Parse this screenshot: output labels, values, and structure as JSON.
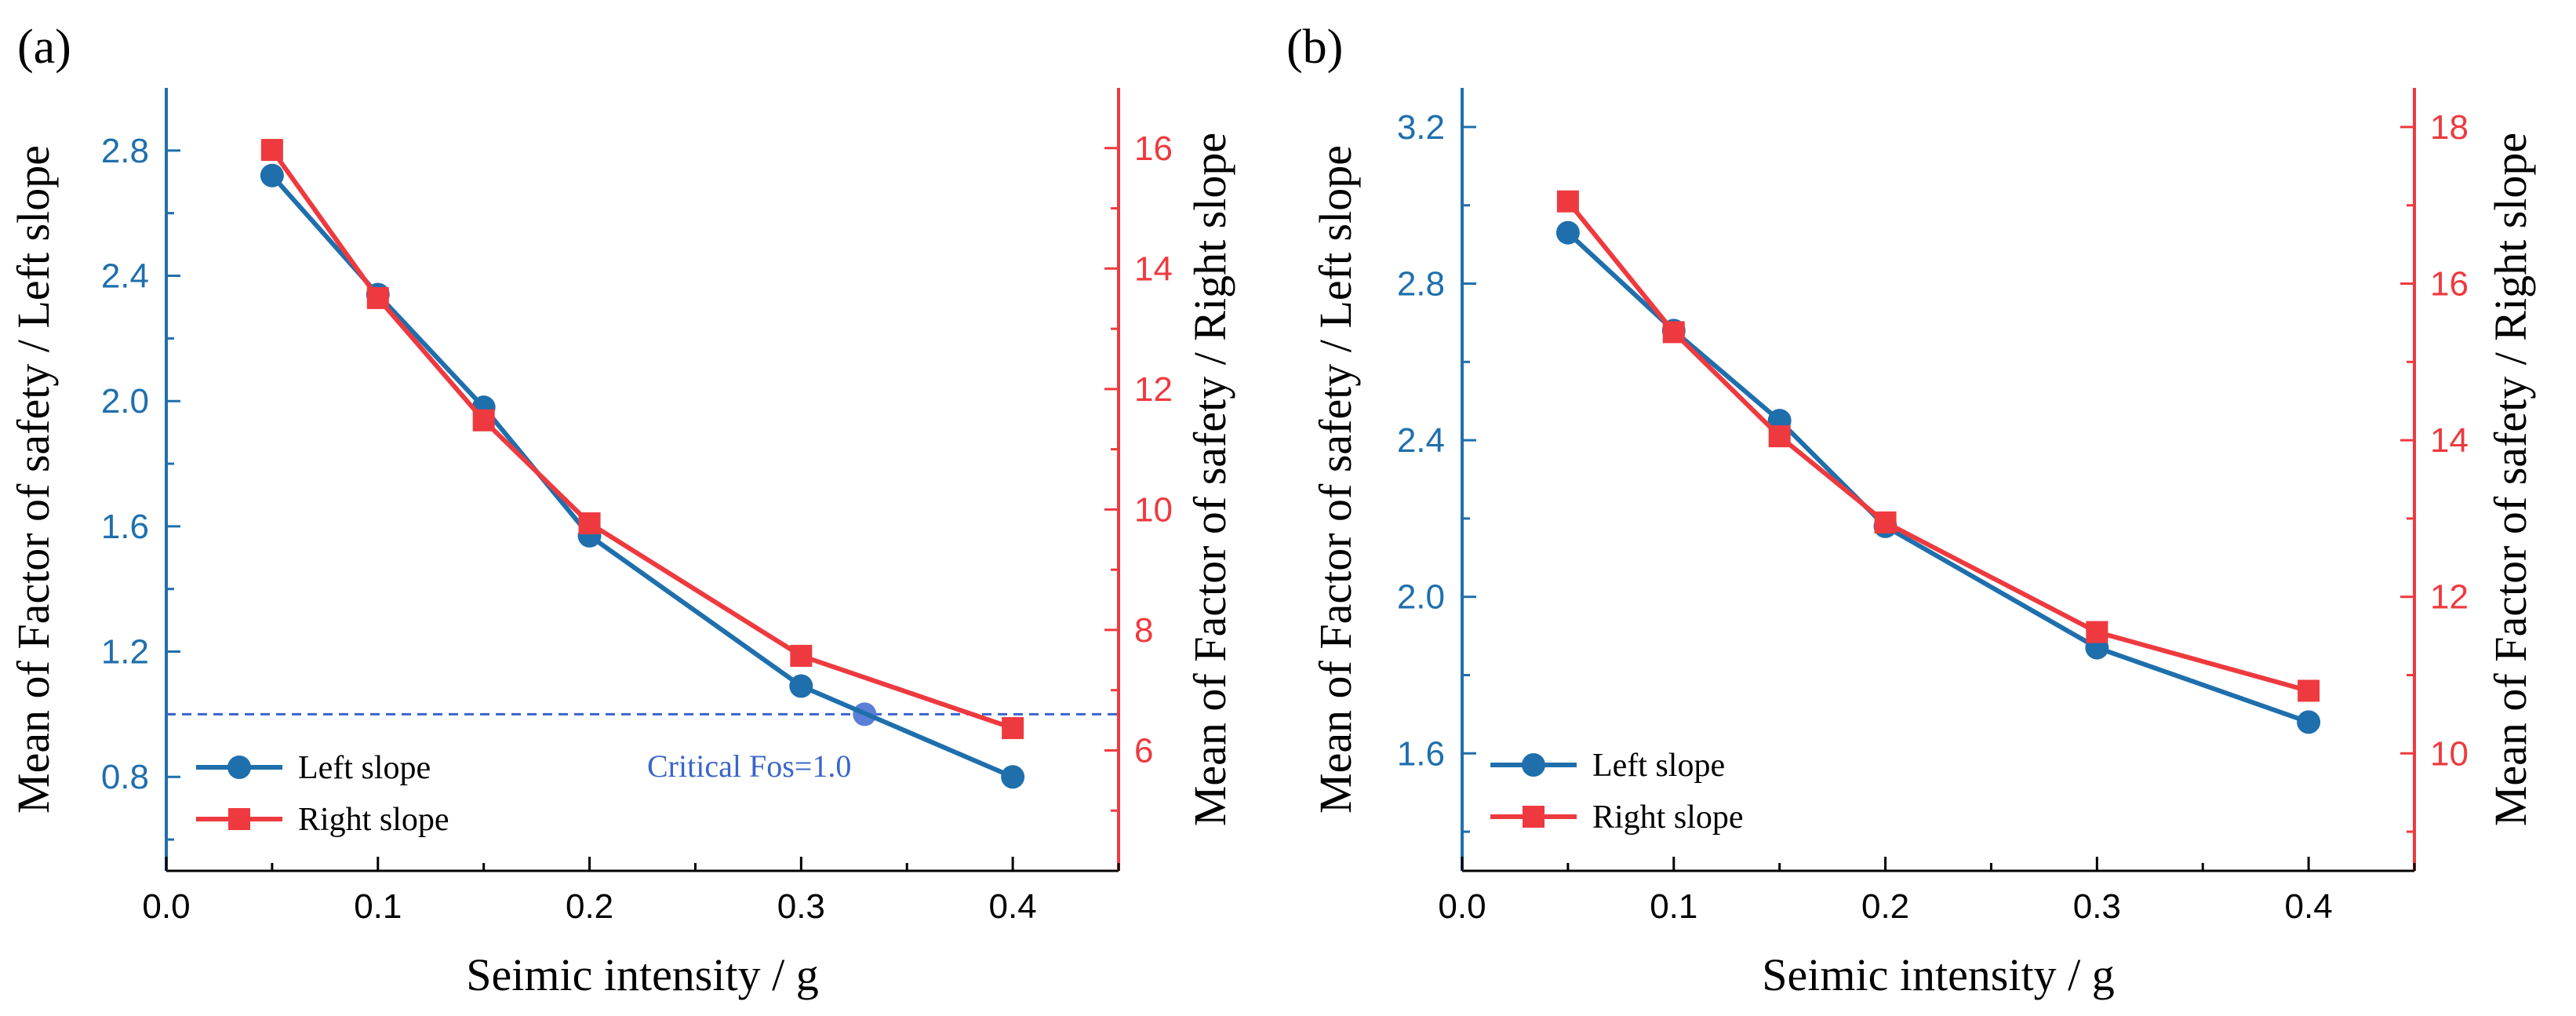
{
  "panels": [
    {
      "label": "(a)",
      "note": "Critical Fos=1.0"
    },
    {
      "label": "(b)",
      "note": ""
    }
  ],
  "colors": {
    "left": "#1f6fad",
    "right": "#ee3a3f",
    "critical": "#3a65c9",
    "critical_point": "#5b7fd6",
    "axis": "#000000"
  },
  "chart_data": [
    {
      "type": "line",
      "panel": "(a)",
      "title": "",
      "xlabel": "Seimic intensity / g",
      "ylabel": "Mean of Factor of safety / Left slope",
      "y2label": "Mean of Factor of safety / Right slope",
      "xlim": [
        0.0,
        0.45
      ],
      "ylim": [
        0.5,
        3.0
      ],
      "y2lim": [
        4.0,
        17.0
      ],
      "xticks": [
        0.0,
        0.1,
        0.2,
        0.3,
        0.4
      ],
      "xtick_labels": [
        "0.0",
        "0.1",
        "0.2",
        "0.3",
        "0.4"
      ],
      "yticks": [
        0.8,
        1.2,
        1.6,
        2.0,
        2.4,
        2.8
      ],
      "ytick_labels": [
        "0.8",
        "1.2",
        "1.6",
        "2.0",
        "2.4",
        "2.8"
      ],
      "y2ticks": [
        6,
        8,
        10,
        12,
        14,
        16
      ],
      "y2tick_labels": [
        "6",
        "8",
        "10",
        "12",
        "14",
        "16"
      ],
      "series": [
        {
          "name": "Left slope",
          "axis": "left",
          "marker": "circle",
          "x": [
            0.05,
            0.1,
            0.15,
            0.2,
            0.3,
            0.4
          ],
          "values": [
            2.72,
            2.34,
            1.98,
            1.57,
            1.09,
            0.8
          ]
        },
        {
          "name": "Right slope",
          "axis": "right",
          "marker": "square",
          "x": [
            0.05,
            0.1,
            0.15,
            0.2,
            0.3,
            0.4
          ],
          "values": [
            15.97,
            13.51,
            11.48,
            9.77,
            7.57,
            6.37
          ]
        }
      ],
      "reference_line": {
        "y": 1.0,
        "label": "Critical Fos=1.0",
        "point_x": 0.33
      },
      "legend": "bottom-left"
    },
    {
      "type": "line",
      "panel": "(b)",
      "title": "",
      "xlabel": "Seimic intensity / g",
      "ylabel": "Mean of Factor of safety / Left slope",
      "y2label": "Mean of Factor of safety / Right slope",
      "xlim": [
        0.0,
        0.45
      ],
      "ylim": [
        1.3,
        3.3
      ],
      "y2lim": [
        8.5,
        18.5
      ],
      "xticks": [
        0.0,
        0.1,
        0.2,
        0.3,
        0.4
      ],
      "xtick_labels": [
        "0.0",
        "0.1",
        "0.2",
        "0.3",
        "0.4"
      ],
      "yticks": [
        1.6,
        2.0,
        2.4,
        2.8,
        3.2
      ],
      "ytick_labels": [
        "1.6",
        "2.0",
        "2.4",
        "2.8",
        "3.2"
      ],
      "y2ticks": [
        10,
        12,
        14,
        16,
        18
      ],
      "y2tick_labels": [
        "10",
        "12",
        "14",
        "16",
        "18"
      ],
      "series": [
        {
          "name": "Left slope",
          "axis": "left",
          "marker": "circle",
          "x": [
            0.05,
            0.1,
            0.15,
            0.2,
            0.3,
            0.4
          ],
          "values": [
            2.93,
            2.68,
            2.45,
            2.18,
            1.87,
            1.68
          ]
        },
        {
          "name": "Right slope",
          "axis": "right",
          "marker": "square",
          "x": [
            0.05,
            0.1,
            0.15,
            0.2,
            0.3,
            0.4
          ],
          "values": [
            17.05,
            15.38,
            14.05,
            12.95,
            11.55,
            10.8
          ]
        }
      ],
      "reference_line": null,
      "legend": "bottom-left"
    }
  ]
}
